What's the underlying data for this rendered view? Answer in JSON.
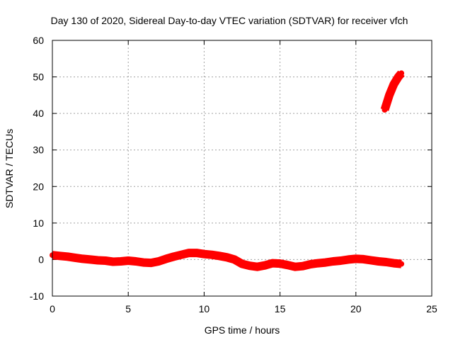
{
  "chart_data": {
    "type": "line",
    "title": "Day 130 of 2020, Sidereal Day-to-day VTEC variation (SDTVAR) for receiver vfch",
    "xlabel": "GPS time / hours",
    "ylabel": "SDTVAR / TECUs",
    "xlim": [
      0,
      25
    ],
    "ylim": [
      -10,
      60
    ],
    "xticks": [
      0,
      5,
      10,
      15,
      20,
      25
    ],
    "yticks": [
      -10,
      0,
      10,
      20,
      30,
      40,
      50,
      60
    ],
    "grid": true,
    "series": [
      {
        "name": "SDTVAR",
        "color": "#ff0000",
        "x": [
          0,
          0.5,
          1,
          1.5,
          2,
          2.5,
          3,
          3.5,
          4,
          4.5,
          5,
          5.5,
          6,
          6.5,
          7,
          7.5,
          8,
          8.5,
          9,
          9.5,
          10,
          10.5,
          11,
          11.5,
          12,
          12.5,
          13,
          13.5,
          14,
          14.5,
          15,
          15.5,
          16,
          16.5,
          17,
          17.5,
          18,
          18.5,
          19,
          19.5,
          20,
          20.5,
          21,
          21.5,
          22,
          22.5,
          23
        ],
        "y": [
          1.2,
          1.0,
          0.8,
          0.5,
          0.2,
          0.0,
          -0.2,
          -0.3,
          -0.6,
          -0.5,
          -0.3,
          -0.5,
          -0.8,
          -0.9,
          -0.5,
          0.2,
          0.8,
          1.3,
          1.8,
          1.8,
          1.5,
          1.3,
          1.0,
          0.6,
          0.0,
          -1.2,
          -1.7,
          -2.0,
          -1.6,
          -1.0,
          -1.1,
          -1.5,
          -2.0,
          -1.8,
          -1.3,
          -1.0,
          -0.8,
          -0.5,
          -0.3,
          0.0,
          0.2,
          0.1,
          -0.2,
          -0.5,
          -0.7,
          -1.0,
          -1.2
        ]
      },
      {
        "name": "SDTVAR (late segment)",
        "color": "#ff0000",
        "x": [
          21.9,
          22.2,
          22.5,
          22.8,
          23.0
        ],
        "y": [
          41,
          45,
          48,
          50,
          51
        ]
      }
    ]
  }
}
